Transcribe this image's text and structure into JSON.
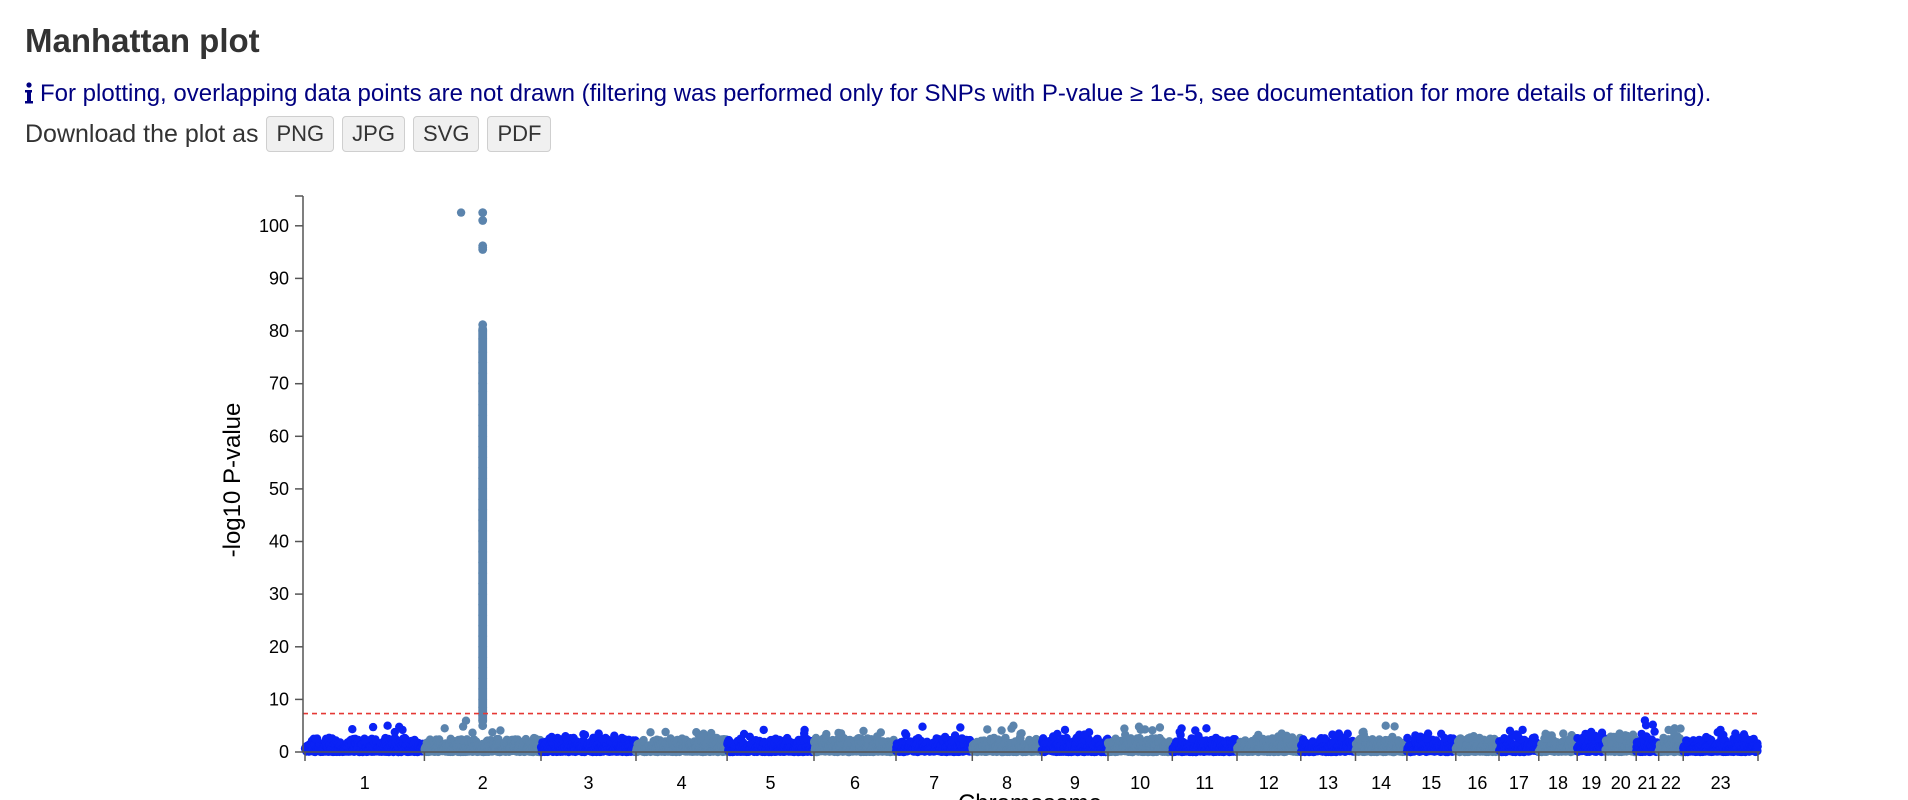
{
  "page": {
    "title": "Manhattan plot",
    "info_text": "For plotting, overlapping data points are not drawn (filtering was performed only for SNPs with P-value ≥ 1e-5, see documentation for more details of filtering).",
    "info_icon": "info-icon",
    "download_label": "Download the plot as",
    "download_buttons": [
      "PNG",
      "JPG",
      "SVG",
      "PDF"
    ]
  },
  "colors": {
    "series_a": "#0a22f5",
    "series_b": "#5b84ad",
    "threshold": "#e53935",
    "info_text": "#000080"
  },
  "chart_data": {
    "type": "scatter",
    "title": "",
    "xlabel": "Chromosome",
    "ylabel": "-log10 P-value",
    "ylim": [
      0,
      103
    ],
    "yticks": [
      0,
      10,
      20,
      30,
      40,
      50,
      60,
      70,
      80,
      90,
      100
    ],
    "grid": false,
    "legend": "none",
    "threshold_line": {
      "value": 7.3,
      "style": "dashed"
    },
    "chromosomes": [
      {
        "label": "1",
        "length": 249,
        "color": "series_a",
        "peak": 5.0
      },
      {
        "label": "2",
        "length": 243,
        "color": "series_b",
        "peak": 102.5,
        "signal": {
          "position": 0.5,
          "values": [
            102.5,
            101.0,
            96.2,
            95.5,
            81.2,
            80.0,
            78.5,
            76.0,
            74.0,
            72.0,
            70.0,
            68.5,
            66.0,
            64.0,
            62.0,
            60.0,
            58.0,
            56.0,
            54.0,
            52.0,
            50.0,
            48.0,
            46.0,
            44.0,
            42.0,
            40.0,
            38.0,
            36.0,
            34.0,
            32.0,
            30.0,
            28.0,
            26.0,
            24.0,
            22.0,
            20.0,
            18.0,
            16.0,
            14.0,
            12.0,
            10.0,
            8.5,
            7.0,
            6.0,
            5.0
          ]
        }
      },
      {
        "label": "3",
        "length": 198,
        "color": "series_a",
        "peak": 3.5
      },
      {
        "label": "4",
        "length": 190,
        "color": "series_b",
        "peak": 3.8
      },
      {
        "label": "5",
        "length": 181,
        "color": "series_a",
        "peak": 4.2
      },
      {
        "label": "6",
        "length": 171,
        "color": "series_b",
        "peak": 4.0
      },
      {
        "label": "7",
        "length": 159,
        "color": "series_a",
        "peak": 4.8
      },
      {
        "label": "8",
        "length": 145,
        "color": "series_b",
        "peak": 5.0
      },
      {
        "label": "9",
        "length": 138,
        "color": "series_a",
        "peak": 4.2
      },
      {
        "label": "10",
        "length": 134,
        "color": "series_b",
        "peak": 4.8
      },
      {
        "label": "11",
        "length": 135,
        "color": "series_a",
        "peak": 4.5
      },
      {
        "label": "12",
        "length": 133,
        "color": "series_b",
        "peak": 3.5
      },
      {
        "label": "13",
        "length": 114,
        "color": "series_a",
        "peak": 3.5
      },
      {
        "label": "14",
        "length": 107,
        "color": "series_b",
        "peak": 5.0
      },
      {
        "label": "15",
        "length": 102,
        "color": "series_a",
        "peak": 3.5
      },
      {
        "label": "16",
        "length": 90,
        "color": "series_b",
        "peak": 3.0
      },
      {
        "label": "17",
        "length": 83,
        "color": "series_a",
        "peak": 4.2
      },
      {
        "label": "18",
        "length": 80,
        "color": "series_b",
        "peak": 3.5
      },
      {
        "label": "19",
        "length": 59,
        "color": "series_a",
        "peak": 3.8
      },
      {
        "label": "20",
        "length": 64,
        "color": "series_b",
        "peak": 3.5
      },
      {
        "label": "21",
        "length": 47,
        "color": "series_a",
        "peak": 6.0
      },
      {
        "label": "22",
        "length": 51,
        "color": "series_b",
        "peak": 4.5
      },
      {
        "label": "23",
        "length": 156,
        "color": "series_a",
        "peak": 4.2
      }
    ]
  }
}
